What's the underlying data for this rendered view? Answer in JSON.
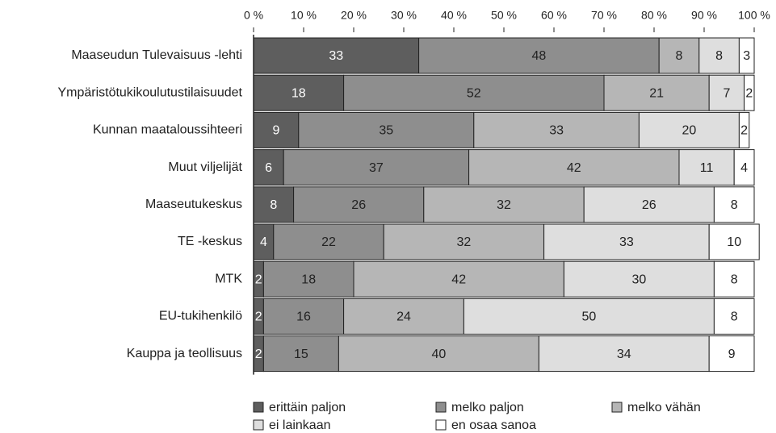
{
  "chart_data": {
    "type": "stacked_barh",
    "categories": [
      "Maaseudun Tulevaisuus -lehti",
      "Ympäristötukikoulutustilaisuudet",
      "Kunnan maataloussihteeri",
      "Muut viljelijät",
      "Maaseutukeskus",
      "TE -keskus",
      "MTK",
      "EU-tukihenkilö",
      "Kauppa ja teollisuus"
    ],
    "series": [
      {
        "name": "erittäin paljon",
        "color": "#5e5e5e",
        "values": [
          33,
          18,
          9,
          6,
          8,
          4,
          2,
          2,
          2
        ]
      },
      {
        "name": "melko paljon",
        "color": "#8e8e8e",
        "values": [
          48,
          52,
          35,
          37,
          26,
          22,
          18,
          16,
          15
        ]
      },
      {
        "name": "melko vähän",
        "color": "#b6b6b6",
        "values": [
          8,
          21,
          33,
          42,
          32,
          32,
          42,
          24,
          40
        ]
      },
      {
        "name": "ei lainkaan",
        "color": "#dedede",
        "values": [
          8,
          7,
          20,
          11,
          26,
          33,
          30,
          50,
          34
        ]
      },
      {
        "name": "en osaa sanoa",
        "color": "#ffffff",
        "values": [
          3,
          2,
          2,
          4,
          8,
          10,
          8,
          8,
          9
        ]
      }
    ],
    "xlim": [
      0,
      100
    ],
    "xticks": [
      {
        "value": 0,
        "label": "0 %"
      },
      {
        "value": 10,
        "label": "10 %"
      },
      {
        "value": 20,
        "label": "20 %"
      },
      {
        "value": 30,
        "label": "30 %"
      },
      {
        "value": 40,
        "label": "40 %"
      },
      {
        "value": 50,
        "label": "50 %"
      },
      {
        "value": 60,
        "label": "60 %"
      },
      {
        "value": 70,
        "label": "70 %"
      },
      {
        "value": 80,
        "label": "80 %"
      },
      {
        "value": 90,
        "label": "90 %"
      },
      {
        "value": 100,
        "label": "100 %"
      }
    ],
    "legend": "bottom"
  }
}
